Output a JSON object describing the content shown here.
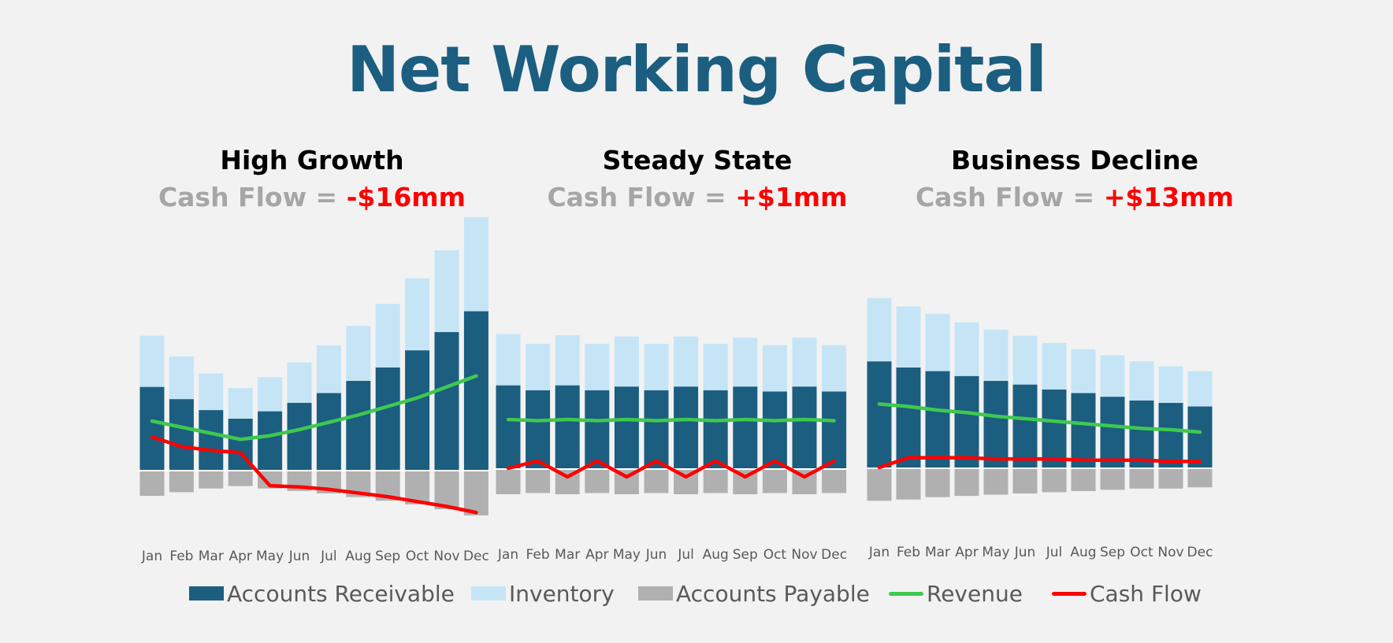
{
  "title": "Net Working Capital",
  "colors": {
    "accounts_receivable": "#1b5e80",
    "inventory": "#c5e5f6",
    "accounts_payable": "#b0b0b0",
    "revenue": "#3fc94f",
    "cash_flow": "#ff0000",
    "title": "#1b5e80"
  },
  "panels": [
    {
      "title": "High Growth",
      "subtitle_prefix": "Cash Flow = ",
      "subtitle_value": "-$16mm"
    },
    {
      "title": "Steady State",
      "subtitle_prefix": "Cash Flow = ",
      "subtitle_value": "+$1mm"
    },
    {
      "title": "Business Decline",
      "subtitle_prefix": "Cash Flow = ",
      "subtitle_value": "+$13mm"
    }
  ],
  "legend": [
    {
      "label": "Accounts Receivable",
      "kind": "bar",
      "color": "#1b5e80"
    },
    {
      "label": "Inventory",
      "kind": "bar",
      "color": "#c5e5f6"
    },
    {
      "label": "Accounts Payable",
      "kind": "bar",
      "color": "#b0b0b0"
    },
    {
      "label": "Revenue",
      "kind": "line",
      "color": "#3fc94f"
    },
    {
      "label": "Cash Flow",
      "kind": "line",
      "color": "#ff0000"
    }
  ],
  "chart_data": [
    {
      "type": "bar",
      "title": "High Growth",
      "subtitle": "Cash Flow = -$16mm",
      "categories": [
        "Jan",
        "Feb",
        "Mar",
        "Apr",
        "May",
        "Jun",
        "Jul",
        "Aug",
        "Sep",
        "Oct",
        "Nov",
        "Dec"
      ],
      "series": [
        {
          "name": "Accounts Receivable",
          "kind": "stacked-bar",
          "values": [
            68,
            58,
            49,
            42,
            48,
            55,
            63,
            73,
            84,
            98,
            113,
            130
          ]
        },
        {
          "name": "Inventory",
          "kind": "stacked-bar",
          "values": [
            42,
            35,
            30,
            25,
            28,
            33,
            39,
            45,
            52,
            59,
            67,
            77
          ]
        },
        {
          "name": "Accounts Payable",
          "kind": "bar-negative",
          "values": [
            -20,
            -17,
            -14,
            -12,
            -14,
            -16,
            -18,
            -21,
            -24,
            -27,
            -31,
            -36
          ]
        },
        {
          "name": "Revenue",
          "kind": "line",
          "values": [
            40,
            35,
            30,
            25,
            28,
            33,
            39,
            45,
            52,
            59,
            68,
            77
          ]
        },
        {
          "name": "Cash Flow",
          "kind": "line",
          "values": [
            27,
            19,
            16,
            14,
            -13,
            -14,
            -16,
            -19,
            -22,
            -26,
            -30,
            -35
          ]
        }
      ]
    },
    {
      "type": "bar",
      "title": "Steady State",
      "subtitle": "Cash Flow = +$1mm",
      "categories": [
        "Jan",
        "Feb",
        "Mar",
        "Apr",
        "May",
        "Jun",
        "Jul",
        "Aug",
        "Sep",
        "Oct",
        "Nov",
        "Dec"
      ],
      "series": [
        {
          "name": "Accounts Receivable",
          "kind": "stacked-bar",
          "values": [
            68,
            64,
            68,
            64,
            67,
            64,
            67,
            64,
            67,
            63,
            67,
            63
          ]
        },
        {
          "name": "Inventory",
          "kind": "stacked-bar",
          "values": [
            42,
            38,
            41,
            38,
            41,
            38,
            41,
            38,
            40,
            38,
            40,
            38
          ]
        },
        {
          "name": "Accounts Payable",
          "kind": "bar-negative",
          "values": [
            -20,
            -19,
            -20,
            -19,
            -20,
            -19,
            -20,
            -19,
            -20,
            -19,
            -20,
            -19
          ]
        },
        {
          "name": "Revenue",
          "kind": "line",
          "values": [
            40,
            39,
            40,
            39,
            40,
            39,
            40,
            39,
            40,
            39,
            40,
            39
          ]
        },
        {
          "name": "Cash Flow",
          "kind": "line",
          "values": [
            0,
            6,
            -7,
            6,
            -7,
            6,
            -7,
            6,
            -7,
            6,
            -7,
            6
          ]
        }
      ]
    },
    {
      "type": "bar",
      "title": "Business Decline",
      "subtitle": "Cash Flow = +$13mm",
      "categories": [
        "Jan",
        "Feb",
        "Mar",
        "Apr",
        "May",
        "Jun",
        "Jul",
        "Aug",
        "Sep",
        "Oct",
        "Nov",
        "Dec"
      ],
      "series": [
        {
          "name": "Accounts Receivable",
          "kind": "stacked-bar",
          "values": [
            87,
            82,
            79,
            75,
            71,
            68,
            64,
            61,
            58,
            55,
            53,
            50
          ]
        },
        {
          "name": "Inventory",
          "kind": "stacked-bar",
          "values": [
            52,
            50,
            47,
            44,
            42,
            40,
            38,
            36,
            34,
            32,
            30,
            29
          ]
        },
        {
          "name": "Accounts Payable",
          "kind": "bar-negative",
          "values": [
            -26,
            -25,
            -23,
            -22,
            -21,
            -20,
            -19,
            -18,
            -17,
            -16,
            -16,
            -15
          ]
        },
        {
          "name": "Revenue",
          "kind": "line",
          "values": [
            52,
            50,
            47,
            45,
            42,
            40,
            38,
            36,
            34,
            32,
            31,
            29
          ]
        },
        {
          "name": "Cash Flow",
          "kind": "line",
          "values": [
            0,
            8,
            8,
            8,
            7,
            7,
            7,
            6,
            6,
            6,
            5,
            5
          ]
        }
      ]
    }
  ]
}
